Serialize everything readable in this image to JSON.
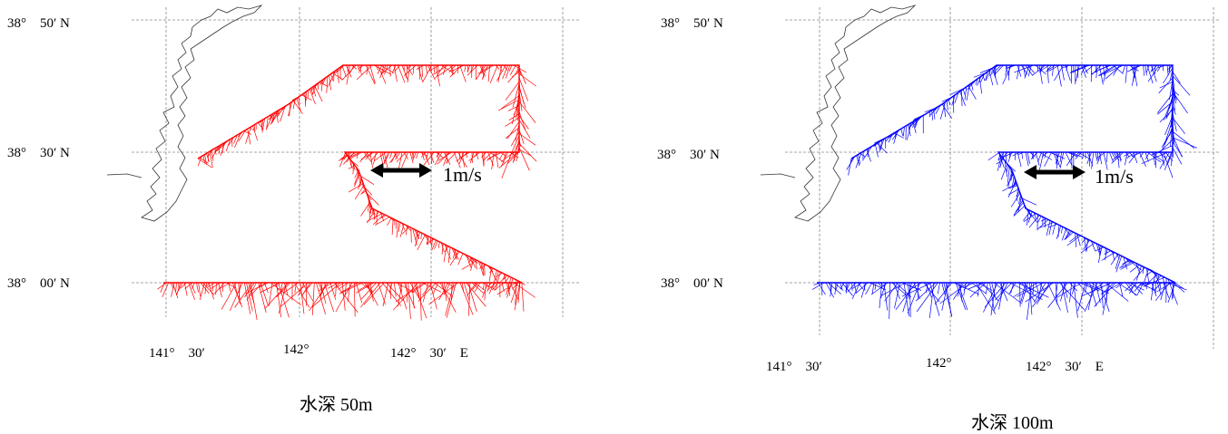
{
  "panels": [
    {
      "id": "depth-50m",
      "color": "#ff0000",
      "lat_labels": [
        "38°　50′ N",
        "38°　30′ N",
        "38°　00′ N"
      ],
      "lon_labels": [
        "141°　30′",
        "142°",
        "142°　30′　E"
      ],
      "scale_label": "1m/s",
      "caption": "水深 50m"
    },
    {
      "id": "depth-100m",
      "color": "#0000ff",
      "lat_labels": [
        "38°　50′ N",
        "38°　30′ N",
        "38°　00′ N"
      ],
      "lon_labels": [
        "141°　30′",
        "142°",
        "142°　30′　E"
      ],
      "scale_label": "1m/s",
      "caption": "水深 100m"
    }
  ]
}
